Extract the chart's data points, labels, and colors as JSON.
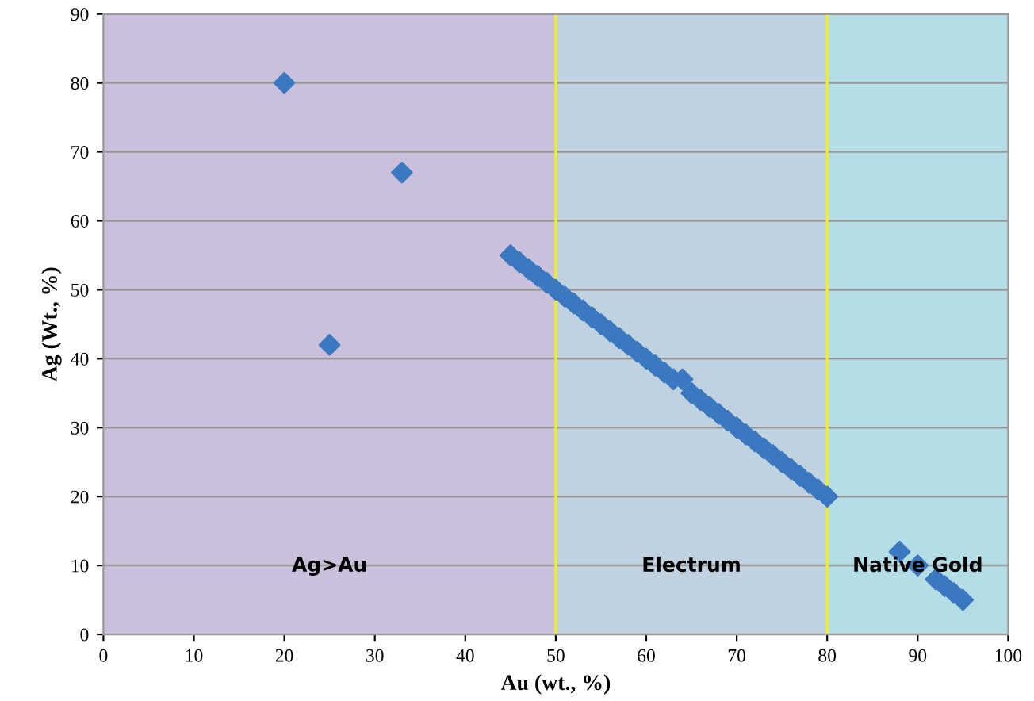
{
  "chart_data": {
    "type": "scatter",
    "xlabel": "Au (wt., %)",
    "ylabel": "Ag (Wt., %)",
    "xlim": [
      0,
      100
    ],
    "xticks": [
      0,
      10,
      20,
      30,
      40,
      50,
      60,
      70,
      80,
      90,
      100
    ],
    "ylim": [
      0,
      90
    ],
    "yticks": [
      0,
      10,
      20,
      30,
      40,
      50,
      60,
      70,
      80,
      90
    ],
    "grid": "y",
    "marker": "diamond",
    "series": [
      {
        "color": "#3a78c0",
        "x": [
          20,
          25,
          33,
          45,
          46,
          47,
          48,
          49,
          50,
          51,
          52,
          53,
          54,
          55,
          56,
          57,
          58,
          59,
          60,
          61,
          62,
          63,
          64,
          65,
          66,
          67,
          68,
          69,
          70,
          71,
          72,
          73,
          74,
          75,
          76,
          77,
          78,
          79,
          80,
          88,
          90,
          92,
          93,
          94,
          95
        ],
        "values": [
          80,
          42,
          67,
          55,
          54,
          53,
          52,
          51,
          50,
          49,
          48,
          47,
          46,
          45,
          44,
          43,
          42,
          41,
          40,
          39,
          38,
          37,
          37,
          35,
          34,
          33,
          32,
          31,
          30,
          29,
          28,
          27,
          26,
          25,
          24,
          23,
          22,
          21,
          20,
          12,
          10,
          8,
          7,
          6,
          5
        ]
      }
    ],
    "bands": [
      {
        "axis": "x",
        "from": 0,
        "to": 50,
        "label": "Ag>Au",
        "color": "#cbc0db"
      },
      {
        "axis": "x",
        "from": 50,
        "to": 80,
        "label": "Electrum",
        "color": "#c0d2e0"
      },
      {
        "axis": "x",
        "from": 80,
        "to": 100,
        "label": "Native Gold",
        "color": "#b5dde6"
      }
    ],
    "ref_lines": [
      {
        "axis": "x",
        "value": 50,
        "color": "#f0f020"
      },
      {
        "axis": "x",
        "value": 80,
        "color": "#f0f020"
      }
    ]
  }
}
